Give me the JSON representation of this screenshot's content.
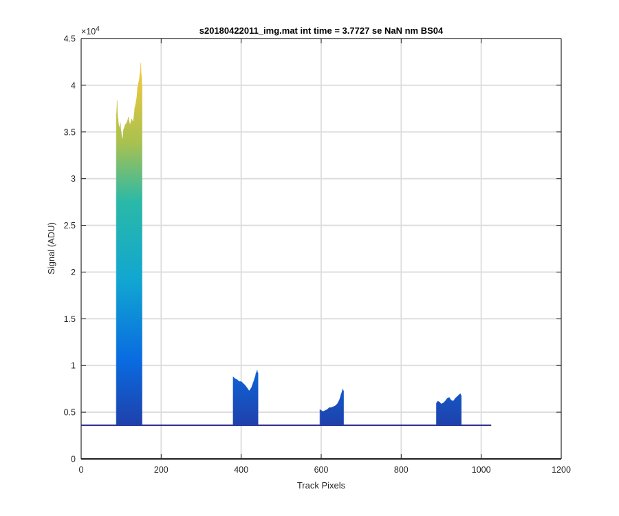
{
  "chart_data": {
    "type": "area",
    "title": "s20180422011_img.mat int time = 3.7727 se  NaN nm BS04",
    "xlabel": "Track Pixels",
    "ylabel": "Signal (ADU)",
    "y_exponent_label": "×10",
    "y_exponent_power": "4",
    "xlim": [
      0,
      1200
    ],
    "ylim": [
      0,
      45000
    ],
    "xticks": [
      0,
      200,
      400,
      600,
      800,
      1000,
      1200
    ],
    "xtick_labels": [
      "0",
      "200",
      "400",
      "600",
      "800",
      "1000",
      "1200"
    ],
    "yticks": [
      0,
      5000,
      10000,
      15000,
      20000,
      25000,
      30000,
      35000,
      40000,
      45000
    ],
    "ytick_labels": [
      "0",
      "0.5",
      "1",
      "1.5",
      "2",
      "2.5",
      "3",
      "3.5",
      "4",
      "4.5"
    ],
    "grid": true,
    "colormap": "parula",
    "color_scale": [
      {
        "value": 0,
        "color": "#2a2b8f"
      },
      {
        "value": 0.25,
        "color": "#0a6be1"
      },
      {
        "value": 0.45,
        "color": "#11a6d1"
      },
      {
        "value": 0.65,
        "color": "#2ab9a8"
      },
      {
        "value": 0.8,
        "color": "#a9c150"
      },
      {
        "value": 1.0,
        "color": "#f8c93a"
      }
    ],
    "baseline": 3600,
    "baseline_x_range": [
      0,
      1025
    ],
    "series": [
      {
        "values": [
          [
            88,
            37000
          ],
          [
            90,
            38400
          ],
          [
            92,
            36500
          ],
          [
            95,
            35500
          ],
          [
            98,
            36000
          ],
          [
            100,
            35000
          ],
          [
            103,
            34200
          ],
          [
            106,
            35300
          ],
          [
            110,
            35800
          ],
          [
            114,
            36000
          ],
          [
            118,
            36600
          ],
          [
            122,
            35800
          ],
          [
            126,
            36400
          ],
          [
            130,
            36100
          ],
          [
            134,
            37600
          ],
          [
            138,
            38500
          ],
          [
            141,
            39800
          ],
          [
            144,
            40400
          ],
          [
            147,
            41300
          ],
          [
            149,
            42400
          ],
          [
            151,
            41000
          ],
          [
            152,
            40000
          ]
        ]
      },
      {
        "values": [
          [
            380,
            8800
          ],
          [
            385,
            8600
          ],
          [
            390,
            8500
          ],
          [
            395,
            8300
          ],
          [
            400,
            8300
          ],
          [
            405,
            8100
          ],
          [
            410,
            7900
          ],
          [
            415,
            7600
          ],
          [
            420,
            7300
          ],
          [
            425,
            7600
          ],
          [
            430,
            8200
          ],
          [
            434,
            8700
          ],
          [
            437,
            9200
          ],
          [
            440,
            9500
          ],
          [
            442,
            9200
          ]
        ]
      },
      {
        "values": [
          [
            597,
            5300
          ],
          [
            600,
            5200
          ],
          [
            605,
            5100
          ],
          [
            610,
            5200
          ],
          [
            615,
            5300
          ],
          [
            620,
            5500
          ],
          [
            625,
            5500
          ],
          [
            630,
            5600
          ],
          [
            635,
            5700
          ],
          [
            640,
            5900
          ],
          [
            645,
            6300
          ],
          [
            650,
            7000
          ],
          [
            654,
            7500
          ],
          [
            656,
            7300
          ]
        ]
      },
      {
        "values": [
          [
            888,
            6000
          ],
          [
            892,
            6200
          ],
          [
            896,
            6100
          ],
          [
            900,
            5900
          ],
          [
            905,
            6000
          ],
          [
            910,
            6200
          ],
          [
            915,
            6500
          ],
          [
            920,
            6600
          ],
          [
            925,
            6300
          ],
          [
            930,
            6200
          ],
          [
            935,
            6500
          ],
          [
            940,
            6700
          ],
          [
            945,
            6900
          ],
          [
            948,
            7000
          ],
          [
            950,
            6800
          ]
        ]
      }
    ]
  }
}
